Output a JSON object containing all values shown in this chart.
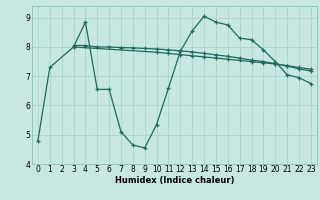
{
  "xlabel": "Humidex (Indice chaleur)",
  "bg_color": "#c6e8e0",
  "grid_color": "#a8cfc8",
  "line_color": "#1e6b5c",
  "xlim": [
    -0.5,
    23.5
  ],
  "ylim": [
    4.0,
    9.4
  ],
  "yticks": [
    4,
    5,
    6,
    7,
    8,
    9
  ],
  "xticks": [
    0,
    1,
    2,
    3,
    4,
    5,
    6,
    7,
    8,
    9,
    10,
    11,
    12,
    13,
    14,
    15,
    16,
    17,
    18,
    19,
    20,
    21,
    22,
    23
  ],
  "line1_x": [
    0,
    1,
    3,
    4,
    5,
    6,
    7,
    8,
    9,
    10,
    11,
    12,
    13,
    14,
    15,
    16,
    17,
    18,
    19,
    20,
    21,
    22,
    23
  ],
  "line1_y": [
    4.8,
    7.3,
    8.0,
    8.85,
    6.55,
    6.55,
    5.1,
    4.65,
    4.55,
    5.35,
    6.6,
    7.85,
    8.55,
    9.05,
    8.85,
    8.75,
    8.3,
    8.25,
    7.9,
    7.5,
    7.05,
    6.95,
    6.75
  ],
  "line2_x": [
    3,
    4,
    5,
    6,
    7,
    8,
    9,
    10,
    11,
    12,
    13,
    14,
    15,
    16,
    17,
    18,
    19,
    20,
    21,
    22,
    23
  ],
  "line2_y": [
    8.05,
    8.05,
    8.0,
    8.0,
    7.98,
    7.97,
    7.95,
    7.93,
    7.9,
    7.87,
    7.83,
    7.78,
    7.73,
    7.68,
    7.62,
    7.55,
    7.5,
    7.43,
    7.35,
    7.25,
    7.18
  ],
  "line3_x": [
    3,
    10,
    11,
    12,
    13,
    14,
    15,
    16,
    17,
    18,
    19,
    20,
    21,
    22,
    23
  ],
  "line3_y": [
    8.0,
    7.82,
    7.78,
    7.74,
    7.7,
    7.66,
    7.62,
    7.58,
    7.54,
    7.5,
    7.46,
    7.42,
    7.36,
    7.3,
    7.24
  ]
}
